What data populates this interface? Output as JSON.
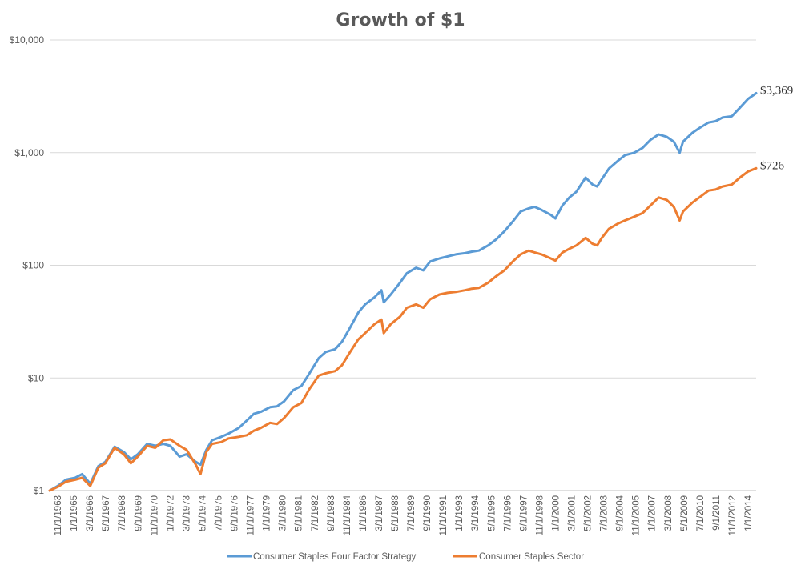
{
  "chart_data": {
    "type": "line",
    "title": "Growth of $1",
    "y_scale": "log",
    "ylim": [
      1,
      10000
    ],
    "y_ticks": [
      {
        "value": 1,
        "label": "$1"
      },
      {
        "value": 10,
        "label": "$10"
      },
      {
        "value": 100,
        "label": "$100"
      },
      {
        "value": 1000,
        "label": "$1,000"
      },
      {
        "value": 10000,
        "label": "$10,000"
      }
    ],
    "x_tick_labels": [
      "11/1/1963",
      "1/1/1965",
      "3/1/1966",
      "5/1/1967",
      "7/1/1968",
      "9/1/1969",
      "11/1/1970",
      "1/1/1972",
      "3/1/1973",
      "5/1/1974",
      "7/1/1975",
      "9/1/1976",
      "11/1/1977",
      "1/1/1979",
      "3/1/1980",
      "5/1/1981",
      "7/1/1982",
      "9/1/1983",
      "11/1/1984",
      "1/1/1986",
      "3/1/1987",
      "5/1/1988",
      "7/1/1989",
      "9/1/1990",
      "11/1/1991",
      "1/1/1993",
      "3/1/1994",
      "5/1/1995",
      "7/1/1996",
      "9/1/1997",
      "11/1/1998",
      "1/1/2000",
      "3/1/2001",
      "5/1/2002",
      "7/1/2003",
      "9/1/2004",
      "11/1/2005",
      "1/1/2007",
      "3/1/2008",
      "5/1/2009",
      "7/1/2010",
      "9/1/2011",
      "11/1/2012",
      "1/1/2014"
    ],
    "grid": "horizontal",
    "legend_position": "bottom",
    "series": [
      {
        "name": "Consumer Staples Four Factor Strategy",
        "color": "#5b9bd5",
        "end_label": "$3,369",
        "points": [
          [
            "1963-11-01",
            1
          ],
          [
            "1964-06-01",
            1.1
          ],
          [
            "1965-01-01",
            1.25
          ],
          [
            "1965-09-01",
            1.3
          ],
          [
            "1966-03-01",
            1.4
          ],
          [
            "1966-10-01",
            1.15
          ],
          [
            "1967-05-01",
            1.65
          ],
          [
            "1967-11-01",
            1.8
          ],
          [
            "1968-07-01",
            2.45
          ],
          [
            "1969-03-01",
            2.2
          ],
          [
            "1969-09-01",
            1.9
          ],
          [
            "1970-03-01",
            2.1
          ],
          [
            "1970-11-01",
            2.6
          ],
          [
            "1971-06-01",
            2.5
          ],
          [
            "1972-01-01",
            2.6
          ],
          [
            "1972-07-01",
            2.5
          ],
          [
            "1973-03-01",
            2.0
          ],
          [
            "1973-09-01",
            2.1
          ],
          [
            "1974-05-01",
            1.8
          ],
          [
            "1974-09-01",
            1.7
          ],
          [
            "1975-02-01",
            2.3
          ],
          [
            "1975-07-01",
            2.8
          ],
          [
            "1976-03-01",
            3.0
          ],
          [
            "1976-09-01",
            3.2
          ],
          [
            "1977-06-01",
            3.6
          ],
          [
            "1978-01-01",
            4.2
          ],
          [
            "1978-07-01",
            4.8
          ],
          [
            "1979-01-01",
            5.0
          ],
          [
            "1979-09-01",
            5.5
          ],
          [
            "1980-03-01",
            5.6
          ],
          [
            "1980-09-01",
            6.2
          ],
          [
            "1981-05-01",
            7.8
          ],
          [
            "1981-12-01",
            8.5
          ],
          [
            "1982-07-01",
            11
          ],
          [
            "1983-03-01",
            15
          ],
          [
            "1983-09-01",
            17
          ],
          [
            "1984-05-01",
            18
          ],
          [
            "1984-11-01",
            21
          ],
          [
            "1985-06-01",
            28
          ],
          [
            "1986-01-01",
            38
          ],
          [
            "1986-07-01",
            45
          ],
          [
            "1987-03-01",
            52
          ],
          [
            "1987-09-01",
            60
          ],
          [
            "1987-11-01",
            47
          ],
          [
            "1988-05-01",
            55
          ],
          [
            "1989-01-01",
            70
          ],
          [
            "1989-07-01",
            85
          ],
          [
            "1990-03-01",
            95
          ],
          [
            "1990-09-01",
            90
          ],
          [
            "1991-03-01",
            108
          ],
          [
            "1991-11-01",
            115
          ],
          [
            "1992-06-01",
            120
          ],
          [
            "1993-01-01",
            125
          ],
          [
            "1993-09-01",
            128
          ],
          [
            "1994-03-01",
            132
          ],
          [
            "1994-09-01",
            135
          ],
          [
            "1995-05-01",
            150
          ],
          [
            "1995-12-01",
            170
          ],
          [
            "1996-07-01",
            200
          ],
          [
            "1997-03-01",
            250
          ],
          [
            "1997-09-01",
            300
          ],
          [
            "1998-04-01",
            320
          ],
          [
            "1998-09-01",
            330
          ],
          [
            "1999-03-01",
            310
          ],
          [
            "1999-11-01",
            280
          ],
          [
            "2000-03-01",
            260
          ],
          [
            "2000-09-01",
            340
          ],
          [
            "2001-03-01",
            400
          ],
          [
            "2001-09-01",
            450
          ],
          [
            "2002-05-01",
            600
          ],
          [
            "2002-11-01",
            520
          ],
          [
            "2003-03-01",
            500
          ],
          [
            "2003-07-01",
            580
          ],
          [
            "2004-01-01",
            720
          ],
          [
            "2004-09-01",
            850
          ],
          [
            "2005-03-01",
            950
          ],
          [
            "2005-11-01",
            1000
          ],
          [
            "2006-06-01",
            1100
          ],
          [
            "2007-01-01",
            1300
          ],
          [
            "2007-08-01",
            1450
          ],
          [
            "2008-03-01",
            1380
          ],
          [
            "2008-09-01",
            1250
          ],
          [
            "2009-02-01",
            1000
          ],
          [
            "2009-05-01",
            1250
          ],
          [
            "2010-01-01",
            1500
          ],
          [
            "2010-07-01",
            1650
          ],
          [
            "2011-03-01",
            1850
          ],
          [
            "2011-09-01",
            1900
          ],
          [
            "2012-03-01",
            2050
          ],
          [
            "2012-11-01",
            2100
          ],
          [
            "2013-06-01",
            2500
          ],
          [
            "2014-01-01",
            3000
          ],
          [
            "2014-08-01",
            3369
          ]
        ]
      },
      {
        "name": "Consumer Staples Sector",
        "color": "#ed7d31",
        "end_label": "$726",
        "points": [
          [
            "1963-11-01",
            1
          ],
          [
            "1964-06-01",
            1.08
          ],
          [
            "1965-01-01",
            1.2
          ],
          [
            "1965-09-01",
            1.25
          ],
          [
            "1966-03-01",
            1.3
          ],
          [
            "1966-10-01",
            1.1
          ],
          [
            "1967-05-01",
            1.6
          ],
          [
            "1967-11-01",
            1.75
          ],
          [
            "1968-07-01",
            2.4
          ],
          [
            "1969-03-01",
            2.1
          ],
          [
            "1969-09-01",
            1.75
          ],
          [
            "1970-03-01",
            2.0
          ],
          [
            "1970-11-01",
            2.5
          ],
          [
            "1971-06-01",
            2.4
          ],
          [
            "1972-01-01",
            2.8
          ],
          [
            "1972-07-01",
            2.85
          ],
          [
            "1973-03-01",
            2.5
          ],
          [
            "1973-09-01",
            2.3
          ],
          [
            "1974-05-01",
            1.7
          ],
          [
            "1974-09-01",
            1.4
          ],
          [
            "1975-02-01",
            2.2
          ],
          [
            "1975-07-01",
            2.6
          ],
          [
            "1976-03-01",
            2.7
          ],
          [
            "1976-09-01",
            2.9
          ],
          [
            "1977-06-01",
            3.0
          ],
          [
            "1978-01-01",
            3.1
          ],
          [
            "1978-07-01",
            3.4
          ],
          [
            "1979-01-01",
            3.6
          ],
          [
            "1979-09-01",
            4.0
          ],
          [
            "1980-03-01",
            3.9
          ],
          [
            "1980-09-01",
            4.4
          ],
          [
            "1981-05-01",
            5.5
          ],
          [
            "1981-12-01",
            6.0
          ],
          [
            "1982-07-01",
            8.0
          ],
          [
            "1983-03-01",
            10.5
          ],
          [
            "1983-09-01",
            11
          ],
          [
            "1984-05-01",
            11.5
          ],
          [
            "1984-11-01",
            13
          ],
          [
            "1985-06-01",
            17
          ],
          [
            "1986-01-01",
            22
          ],
          [
            "1986-07-01",
            25
          ],
          [
            "1987-03-01",
            30
          ],
          [
            "1987-09-01",
            33
          ],
          [
            "1987-11-01",
            25
          ],
          [
            "1988-05-01",
            30
          ],
          [
            "1989-01-01",
            35
          ],
          [
            "1989-07-01",
            42
          ],
          [
            "1990-03-01",
            45
          ],
          [
            "1990-09-01",
            42
          ],
          [
            "1991-03-01",
            50
          ],
          [
            "1991-11-01",
            55
          ],
          [
            "1992-06-01",
            57
          ],
          [
            "1993-01-01",
            58
          ],
          [
            "1993-09-01",
            60
          ],
          [
            "1994-03-01",
            62
          ],
          [
            "1994-09-01",
            63
          ],
          [
            "1995-05-01",
            70
          ],
          [
            "1995-12-01",
            80
          ],
          [
            "1996-07-01",
            90
          ],
          [
            "1997-03-01",
            110
          ],
          [
            "1997-09-01",
            125
          ],
          [
            "1998-04-01",
            135
          ],
          [
            "1998-09-01",
            130
          ],
          [
            "1999-03-01",
            125
          ],
          [
            "1999-11-01",
            115
          ],
          [
            "2000-03-01",
            110
          ],
          [
            "2000-09-01",
            130
          ],
          [
            "2001-03-01",
            140
          ],
          [
            "2001-09-01",
            150
          ],
          [
            "2002-05-01",
            175
          ],
          [
            "2002-11-01",
            155
          ],
          [
            "2003-03-01",
            150
          ],
          [
            "2003-07-01",
            175
          ],
          [
            "2004-01-01",
            210
          ],
          [
            "2004-09-01",
            235
          ],
          [
            "2005-03-01",
            250
          ],
          [
            "2005-11-01",
            270
          ],
          [
            "2006-06-01",
            290
          ],
          [
            "2007-01-01",
            340
          ],
          [
            "2007-08-01",
            400
          ],
          [
            "2008-03-01",
            380
          ],
          [
            "2008-09-01",
            330
          ],
          [
            "2009-02-01",
            250
          ],
          [
            "2009-05-01",
            300
          ],
          [
            "2010-01-01",
            360
          ],
          [
            "2010-07-01",
            400
          ],
          [
            "2011-03-01",
            460
          ],
          [
            "2011-09-01",
            470
          ],
          [
            "2012-03-01",
            500
          ],
          [
            "2012-11-01",
            520
          ],
          [
            "2013-06-01",
            600
          ],
          [
            "2014-01-01",
            680
          ],
          [
            "2014-08-01",
            726
          ]
        ]
      }
    ]
  }
}
